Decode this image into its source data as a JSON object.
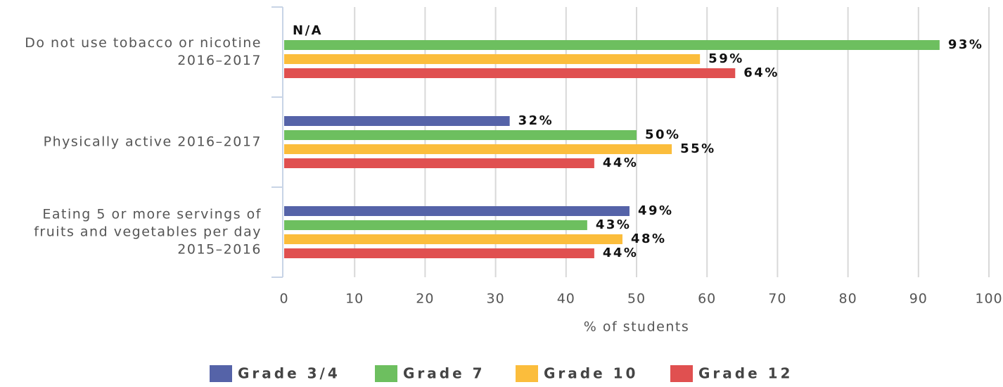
{
  "chart_data": {
    "type": "bar",
    "orientation": "horizontal",
    "categories": [
      "Do not use tobacco or nicotine\n2016–2017",
      "Physically active 2016–2017",
      "Eating 5 or more servings of\nfruits and vegetables per day\n2015–2016"
    ],
    "series": [
      {
        "name": "Grade 3/4",
        "color": "#5563a8",
        "values": [
          null,
          32,
          49
        ],
        "value_labels": [
          "N/A",
          "32%",
          "49%"
        ]
      },
      {
        "name": "Grade 7",
        "color": "#6dbf5f",
        "values": [
          93,
          50,
          43
        ],
        "value_labels": [
          "93%",
          "50%",
          "43%"
        ]
      },
      {
        "name": "Grade 10",
        "color": "#fbbd3c",
        "values": [
          59,
          55,
          48
        ],
        "value_labels": [
          "59%",
          "55%",
          "48%"
        ]
      },
      {
        "name": "Grade 12",
        "color": "#e05050",
        "values": [
          64,
          44,
          44
        ],
        "value_labels": [
          "64%",
          "44%",
          "44%"
        ]
      }
    ],
    "xlabel": "% of students",
    "xlim": [
      0,
      100
    ],
    "xticks": [
      0,
      10,
      20,
      30,
      40,
      50,
      60,
      70,
      80,
      90,
      100
    ],
    "grid": true,
    "legend": "bottom"
  }
}
